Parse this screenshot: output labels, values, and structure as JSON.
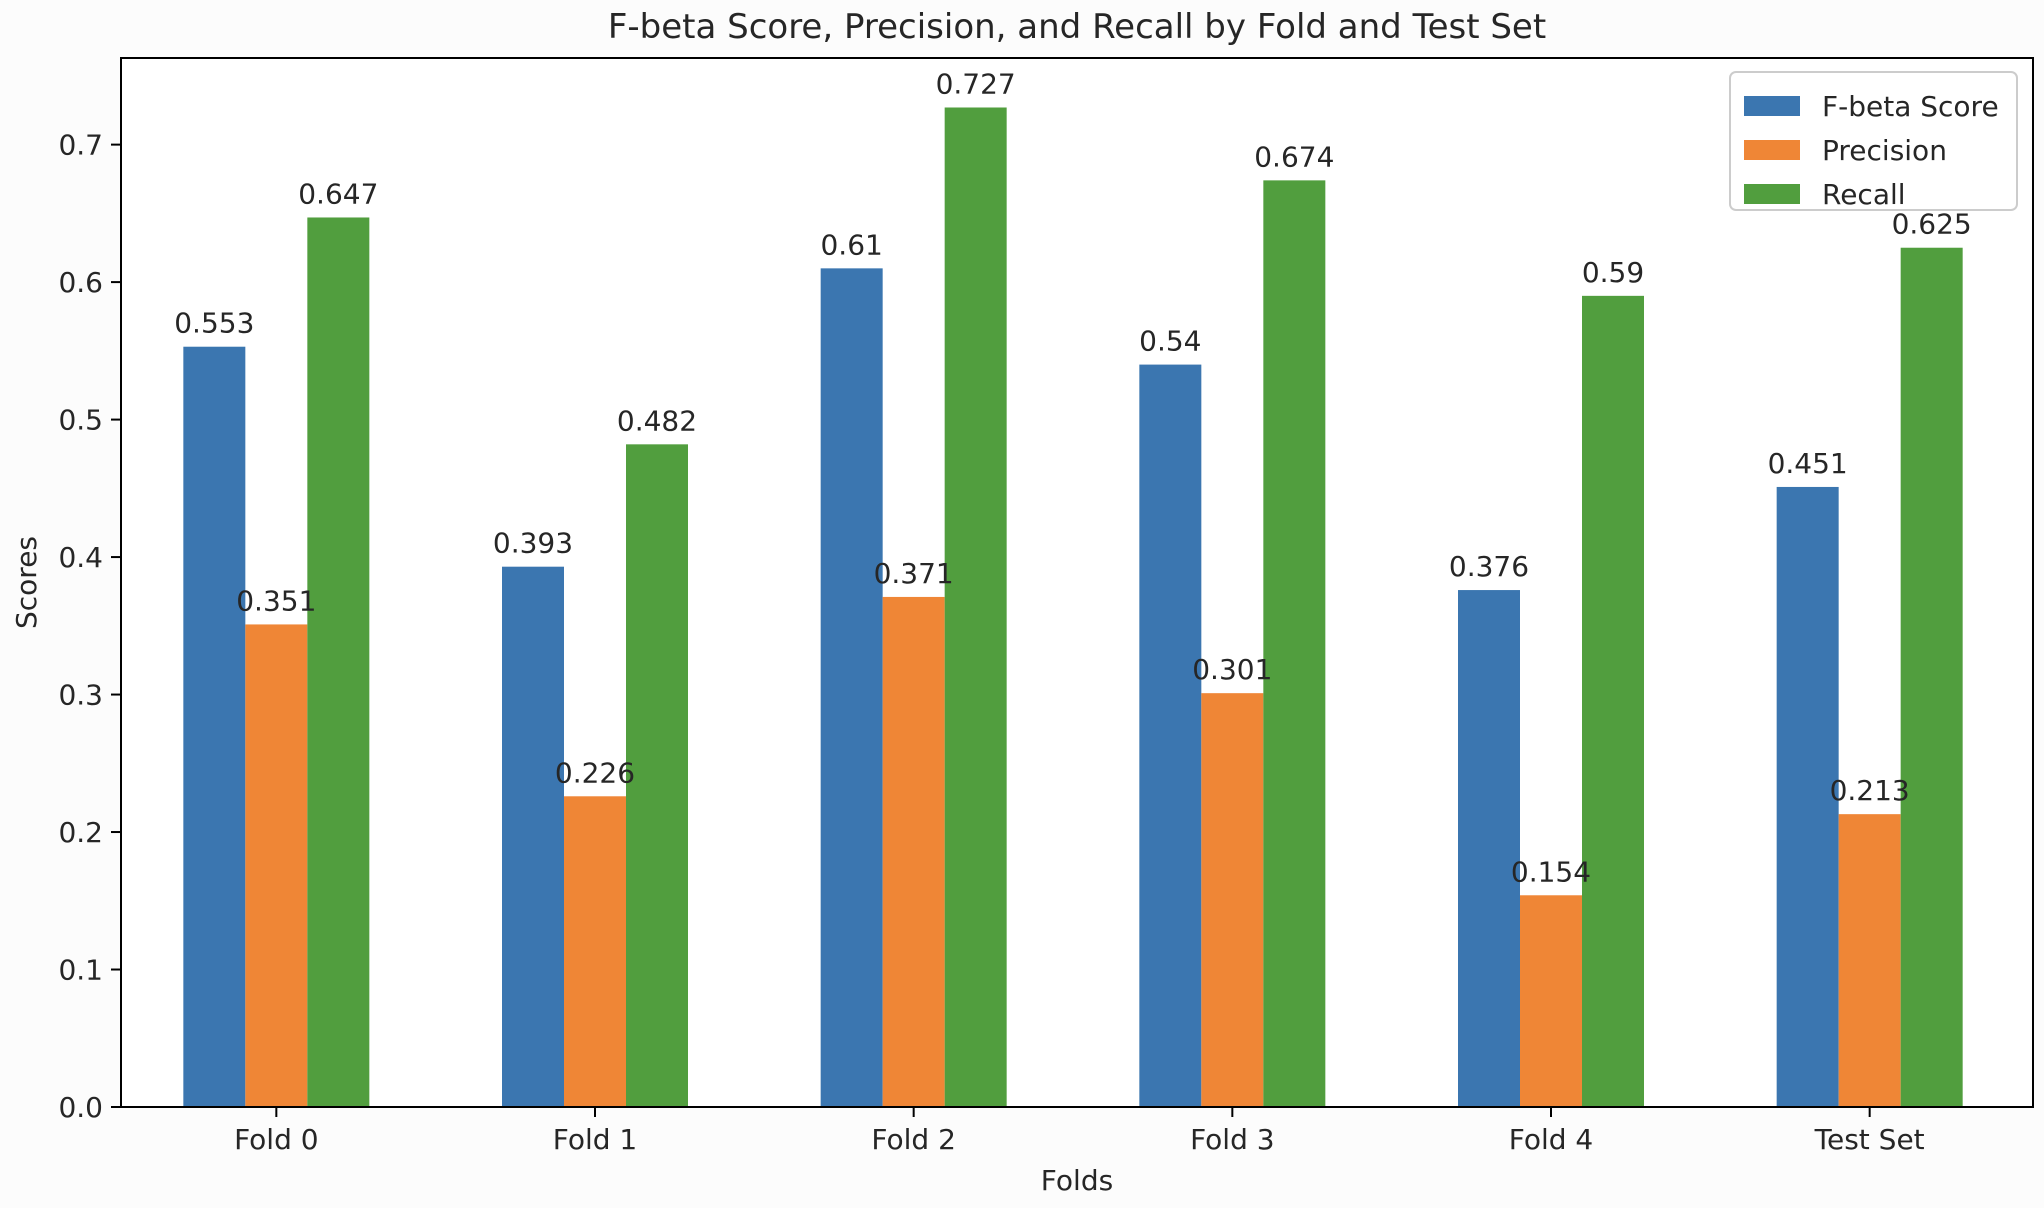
{
  "chart_data": {
    "type": "bar",
    "title": "F-beta Score, Precision, and Recall by Fold and Test Set",
    "xlabel": "Folds",
    "ylabel": "Scores",
    "ylim": [
      0,
      0.763
    ],
    "yticks": [
      "0.0",
      "0.1",
      "0.2",
      "0.3",
      "0.4",
      "0.5",
      "0.6",
      "0.7"
    ],
    "categories": [
      "Fold 0",
      "Fold 1",
      "Fold 2",
      "Fold 3",
      "Fold 4",
      "Test Set"
    ],
    "series": [
      {
        "name": "F-beta Score",
        "color": "#3b76b0",
        "values": [
          0.553,
          0.393,
          0.61,
          0.54,
          0.376,
          0.451
        ],
        "labels": [
          "0.553",
          "0.393",
          "0.61",
          "0.54",
          "0.376",
          "0.451"
        ]
      },
      {
        "name": "Precision",
        "color": "#ef8636",
        "values": [
          0.351,
          0.226,
          0.371,
          0.301,
          0.154,
          0.213
        ],
        "labels": [
          "0.351",
          "0.226",
          "0.371",
          "0.301",
          "0.154",
          "0.213"
        ]
      },
      {
        "name": "Recall",
        "color": "#519e3e",
        "values": [
          0.647,
          0.482,
          0.727,
          0.674,
          0.59,
          0.625
        ],
        "labels": [
          "0.647",
          "0.482",
          "0.727",
          "0.674",
          "0.59",
          "0.625"
        ]
      }
    ],
    "legend_position": "top-right",
    "grid": false
  }
}
